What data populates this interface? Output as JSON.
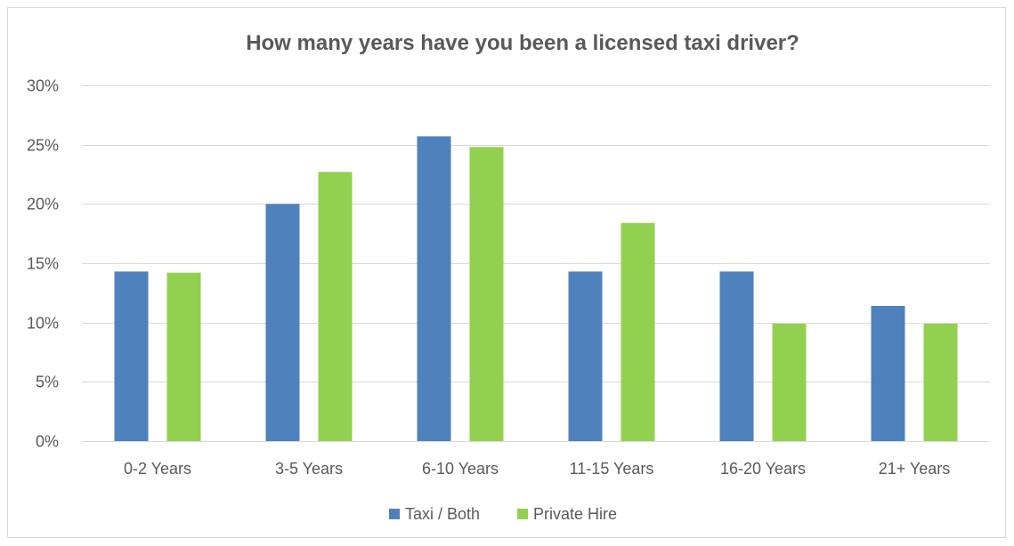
{
  "chart_data": {
    "type": "bar",
    "title": "How many years have you been a licensed taxi driver?",
    "xlabel": "",
    "ylabel": "",
    "categories": [
      "0-2 Years",
      "3-5 Years",
      "6-10 Years",
      "11-15 Years",
      "16-20 Years",
      "21+ Years"
    ],
    "series": [
      {
        "name": "Taxi / Both",
        "color": "#4f81bd",
        "values": [
          14.3,
          20.0,
          25.7,
          14.3,
          14.3,
          11.4
        ]
      },
      {
        "name": "Private Hire",
        "color": "#92d050",
        "values": [
          14.2,
          22.7,
          24.8,
          18.4,
          9.9,
          9.9
        ]
      }
    ],
    "ylim": [
      0,
      30
    ],
    "yticks": [
      0,
      5,
      10,
      15,
      20,
      25,
      30
    ],
    "ytick_labels": [
      "0%",
      "5%",
      "10%",
      "15%",
      "20%",
      "25%",
      "30%"
    ],
    "grid": true,
    "legend_position": "bottom"
  }
}
